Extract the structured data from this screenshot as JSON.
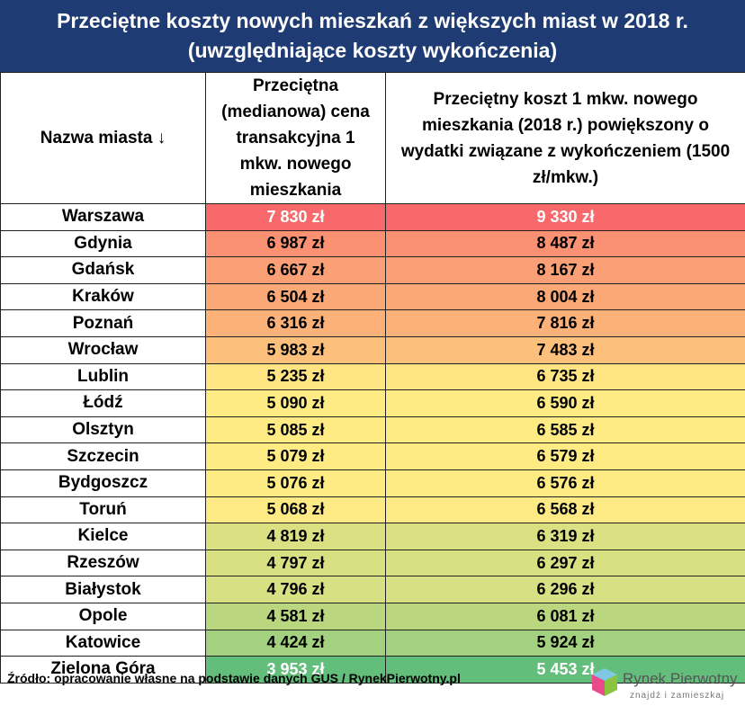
{
  "header": {
    "title": "Przeciętne koszty nowych mieszkań z większych miast w 2018 r. (uwzględniające koszty wykończenia)"
  },
  "table": {
    "columns": [
      "Nazwa miasta ↓",
      "Przeciętna (medianowa) cena transakcyjna 1 mkw. nowego mieszkania",
      "Przeciętny koszt 1 mkw. nowego mieszkania (2018 r.) powiększony o wydatki związane z wykończeniem (1500 zł/mkw.)"
    ],
    "rows": [
      [
        "Warszawa",
        "7 830 zł",
        "9 330 zł"
      ],
      [
        "Gdynia",
        "6 987 zł",
        "8 487 zł"
      ],
      [
        "Gdańsk",
        "6 667 zł",
        "8 167 zł"
      ],
      [
        "Kraków",
        "6 504 zł",
        "8 004 zł"
      ],
      [
        "Poznań",
        "6 316 zł",
        "7 816 zł"
      ],
      [
        "Wrocław",
        "5 983 zł",
        "7 483 zł"
      ],
      [
        "Lublin",
        "5 235 zł",
        "6 735 zł"
      ],
      [
        "Łódź",
        "5 090 zł",
        "6 590 zł"
      ],
      [
        "Olsztyn",
        "5 085 zł",
        "6 585 zł"
      ],
      [
        "Szczecin",
        "5 079 zł",
        "6 579 zł"
      ],
      [
        "Bydgoszcz",
        "5 076 zł",
        "6 576 zł"
      ],
      [
        "Toruń",
        "5 068 zł",
        "6 568 zł"
      ],
      [
        "Kielce",
        "4 819 zł",
        "6 319 zł"
      ],
      [
        "Rzeszów",
        "4 797 zł",
        "6 297 zł"
      ],
      [
        "Białystok",
        "4 796 zł",
        "6 296 zł"
      ],
      [
        "Opole",
        "4 581 zł",
        "6 081 zł"
      ],
      [
        "Katowice",
        "4 424 zł",
        "5 924 zł"
      ],
      [
        "Zielona Góra",
        "3 953 zł",
        "5 453 zł"
      ]
    ]
  },
  "footer": {
    "source": "Źródło: opracowanie własne na podstawie danych GUS / RynekPierwotny.pl",
    "logo_name": "Rynek Pierwotny",
    "logo_tagline": "znajdź i zamieszkaj"
  }
}
